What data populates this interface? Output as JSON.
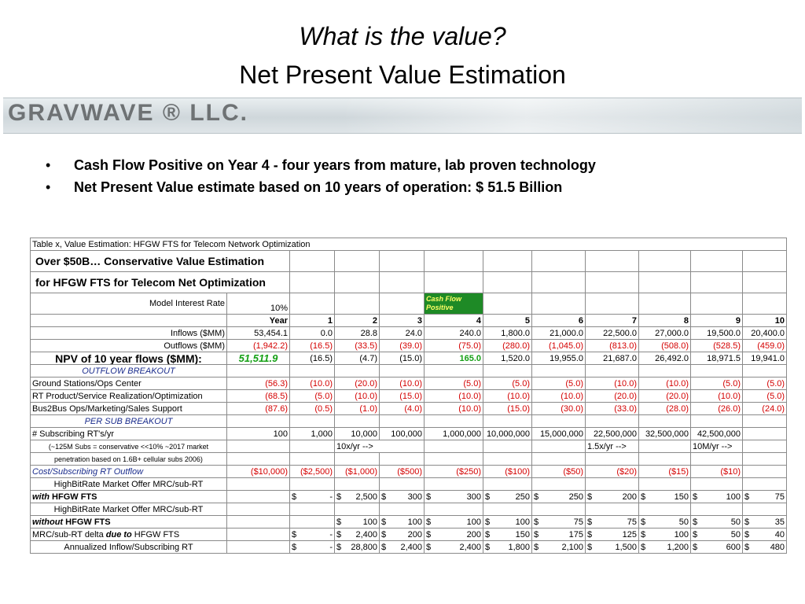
{
  "slide": {
    "title_line1": "What is the value?",
    "title_line2": "Net Present Value Estimation",
    "banner_logo": "GRAVWAVE ® LLC.",
    "bullets": [
      "Cash Flow Positive on Year 4 -  four years from mature, lab proven technology",
      "Net Present Value estimate based on 10 years of operation: $ 51.5 Billion"
    ],
    "bullet_glyph": "•"
  },
  "table": {
    "caption": "Table x, Value Estimation: HFGW FTS for Telecom Network Optimization",
    "heading1": "Over $50B… Conservative Value Estimation",
    "heading2": "for HFGW FTS for Telecom Net Optimization",
    "model_rate_label": "Model Interest Rate",
    "model_rate_value": "10%",
    "cash_flow_note_l1": "Cash Flow",
    "cash_flow_note_l2": "Positive",
    "year_label": "Year",
    "years": [
      "1",
      "2",
      "3",
      "4",
      "5",
      "6",
      "7",
      "8",
      "9",
      "10"
    ],
    "inflows": {
      "label": "Inflows ($MM)",
      "total": "53,454.1",
      "values": [
        "0.0",
        "28.8",
        "24.0",
        "240.0",
        "1,800.0",
        "21,000.0",
        "22,500.0",
        "27,000.0",
        "19,500.0",
        "20,400.0"
      ]
    },
    "outflows": {
      "label": "Outflows ($MM)",
      "total": "(1,942.2)",
      "values": [
        "(16.5)",
        "(33.5)",
        "(39.0)",
        "(75.0)",
        "(280.0)",
        "(1,045.0)",
        "(813.0)",
        "(508.0)",
        "(528.5)",
        "(459.0)"
      ]
    },
    "npv": {
      "label": "NPV of 10 year flows ($MM):",
      "total": "51,511.9",
      "values": [
        "(16.5)",
        "(4.7)",
        "(15.0)",
        "165.0",
        "1,520.0",
        "19,955.0",
        "21,687.0",
        "26,492.0",
        "18,971.5",
        "19,941.0"
      ]
    },
    "outflow_breakout_label": "OUTFLOW BREAKOUT",
    "ground": {
      "label": "Ground Stations/Ops Center",
      "total": "(56.3)",
      "values": [
        "(10.0)",
        "(20.0)",
        "(10.0)",
        "(5.0)",
        "(5.0)",
        "(5.0)",
        "(10.0)",
        "(10.0)",
        "(5.0)",
        "(5.0)"
      ]
    },
    "rtprod": {
      "label": "RT Product/Service Realization/Optimization",
      "total": "(68.5)",
      "values": [
        "(5.0)",
        "(10.0)",
        "(15.0)",
        "(10.0)",
        "(10.0)",
        "(10.0)",
        "(20.0)",
        "(20.0)",
        "(10.0)",
        "(5.0)"
      ]
    },
    "b2b": {
      "label": "Bus2Bus Ops/Marketing/Sales Support",
      "total": "(87.6)",
      "values": [
        "(0.5)",
        "(1.0)",
        "(4.0)",
        "(10.0)",
        "(15.0)",
        "(30.0)",
        "(33.0)",
        "(28.0)",
        "(26.0)",
        "(24.0)"
      ]
    },
    "per_sub_label": "PER SUB BREAKOUT",
    "subs": {
      "label": "# Subscribing RT's/yr",
      "values": [
        "100",
        "1,000",
        "10,000",
        "100,000",
        "1,000,000",
        "10,000,000",
        "15,000,000",
        "22,500,000",
        "32,500,000",
        "42,500,000"
      ]
    },
    "note1": "(~125M Subs = conservative <<10% ~2017 market",
    "note2": "penetration based on 1.6B+ cellular subs 2006)",
    "growth1": "10x/yr -->",
    "growth2": "1.5x/yr -->",
    "growth3": "10M/yr -->",
    "cost": {
      "label": "Cost/Subscribing RT Outflow",
      "values": [
        "($10,000)",
        "($2,500)",
        "($1,000)",
        "($500)",
        "($250)",
        "($100)",
        "($50)",
        "($20)",
        "($15)",
        "($10)"
      ]
    },
    "with_l1": "HighBitRate Market Offer MRC/sub-RT",
    "with_pre": "with",
    "with_post": " HFGW FTS",
    "with_vals": [
      "-",
      "2,500",
      "300",
      "300",
      "250",
      "250",
      "200",
      "150",
      "100",
      "75"
    ],
    "without_l1": "HighBitRate Market Offer MRC/sub-RT",
    "without_pre": "without",
    "without_post": " HFGW FTS",
    "without_vals": [
      "",
      "100",
      "100",
      "100",
      "100",
      "75",
      "75",
      "50",
      "50",
      "35"
    ],
    "delta_pre": "MRC/sub-RT delta ",
    "delta_due": "due to",
    "delta_post": " HFGW FTS",
    "delta_vals": [
      "-",
      "2,400",
      "200",
      "200",
      "150",
      "175",
      "125",
      "100",
      "50",
      "40"
    ],
    "annual_label": "Annualized Inflow/Subscribing RT",
    "annual_vals": [
      "-",
      "28,800",
      "2,400",
      "2,400",
      "1,800",
      "2,100",
      "1,500",
      "1,200",
      "600",
      "480"
    ],
    "dollar": "$"
  }
}
